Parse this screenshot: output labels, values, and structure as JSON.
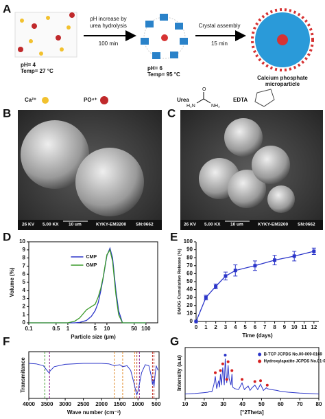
{
  "schematic": {
    "label": "A",
    "step1": "pH increase by",
    "step1b": "urea hydrolysis",
    "time1": "100 min",
    "step2": "Crystal assembly",
    "time2": "15 min",
    "ph1": "pH= 4",
    "temp1": "Temp= 27 °C",
    "ph2": "pH= 6",
    "temp2": "Temp= 95 °C",
    "product": "Calcium phosphate",
    "product2": "microparticle",
    "ca": "Ca²⁺",
    "po": "PO⁴⁺",
    "urea": "Urea",
    "edta": "EDTA",
    "o": "O",
    "h2n": "H₂N",
    "nh2": "NH₂"
  },
  "micrographs": [
    {
      "label": "B",
      "kv": "26 KV",
      "mag": "5.00 KX",
      "bar": "10 um",
      "model": "KYKY-EM3200",
      "sn": "SN:0662"
    },
    {
      "label": "C",
      "kv": "26 KV",
      "mag": "5.00 KX",
      "bar": "10 um",
      "model": "KYKY-EM3200",
      "sn": "SN:0662"
    }
  ],
  "chart_data": [
    {
      "type": "line",
      "label": "D",
      "xlabel": "Particle size (µm)",
      "ylabel": "Volume (%)",
      "xlog": true,
      "frame": true,
      "x": [
        0.1,
        0.5,
        1,
        1.5,
        2,
        3,
        4,
        5,
        6,
        7,
        8,
        10,
        12,
        14,
        17,
        20,
        25,
        30,
        50,
        100
      ],
      "xlim": [
        0.1,
        200
      ],
      "xticks": [
        0.1,
        0.5,
        1,
        5,
        10,
        50,
        100
      ],
      "ylim": [
        0,
        10
      ],
      "yticks": [
        0,
        1,
        2,
        3,
        4,
        5,
        6,
        7,
        8,
        9,
        10
      ],
      "series": [
        {
          "name": "CMP",
          "color": "#2b35c9",
          "values": [
            0,
            0,
            0,
            0,
            0.05,
            0.3,
            0.8,
            1.5,
            2.5,
            4,
            5.5,
            8.3,
            9.2,
            8,
            4,
            1.5,
            0,
            0,
            0,
            0
          ]
        },
        {
          "name": "GMP",
          "color": "#3a9a2a",
          "values": [
            0,
            0,
            0,
            0.2,
            0.6,
            1.6,
            2,
            2.3,
            3.2,
            4.3,
            5.6,
            8.4,
            9,
            7.6,
            3.5,
            1,
            0,
            0,
            0,
            0
          ]
        }
      ]
    },
    {
      "type": "errorline",
      "label": "E",
      "xlabel": "Time (days)",
      "ylabel": "DMOG Cumulative Release (%)",
      "frame": false,
      "x": [
        0,
        1,
        2,
        3,
        4,
        6,
        8,
        10,
        12
      ],
      "xlim": [
        0,
        12.5
      ],
      "xticks": [
        0,
        1,
        2,
        3,
        4,
        5,
        6,
        7,
        8,
        9,
        10,
        11,
        12
      ],
      "ylim": [
        0,
        100
      ],
      "yticks": [
        0,
        10,
        20,
        30,
        40,
        50,
        60,
        70,
        80,
        90,
        100
      ],
      "series": [
        {
          "color": "#2b35c9",
          "values": [
            0,
            30,
            44,
            57,
            64,
            70,
            77,
            82,
            88
          ],
          "errors": [
            0,
            3,
            3,
            5,
            7,
            6,
            6,
            6,
            4
          ]
        }
      ]
    },
    {
      "type": "spectrum",
      "label": "F",
      "xlabel": "Wave number (cm⁻¹)",
      "ylabel": "Transmitance",
      "frame": true,
      "color": "#2b35c9",
      "x": [
        4000,
        3800,
        3600,
        3500,
        3450,
        3400,
        3300,
        3000,
        2500,
        2000,
        1800,
        1650,
        1500,
        1420,
        1300,
        1200,
        1100,
        1050,
        1030,
        1000,
        950,
        900,
        800,
        700,
        640,
        600,
        580,
        560,
        530,
        500,
        450
      ],
      "values": [
        0.75,
        0.74,
        0.7,
        0.6,
        0.55,
        0.6,
        0.68,
        0.73,
        0.75,
        0.75,
        0.74,
        0.7,
        0.72,
        0.68,
        0.7,
        0.6,
        0.3,
        0.12,
        0.08,
        0.15,
        0.35,
        0.55,
        0.72,
        0.7,
        0.5,
        0.3,
        0.4,
        0.25,
        0.5,
        0.7,
        0.6
      ],
      "xlim": [
        4000,
        420
      ],
      "xticks": [
        4000,
        3500,
        3000,
        2500,
        2000,
        1500,
        1000,
        500
      ],
      "ylim": [
        0,
        1
      ],
      "markers": [
        3560,
        3430,
        1650,
        1420,
        1090,
        1030,
        960,
        600,
        560
      ],
      "marker_colors": [
        "#3a9a2a",
        "#8a1a8a",
        "#e08a2a",
        "#e08a2a",
        "#e08a2a",
        "#c0392b",
        "#8a1a8a",
        "#c0392b",
        "#c0392b"
      ]
    },
    {
      "type": "spectrum",
      "label": "G",
      "xlabel": "[°2Theta]",
      "ylabel": "Intensity (a.u)",
      "frame": true,
      "color": "#2b35c9",
      "x": [
        10,
        15,
        20,
        22,
        23,
        24,
        25,
        25.8,
        26.5,
        27.5,
        28,
        28.5,
        29,
        29.7,
        30.5,
        31,
        31.8,
        32.5,
        33,
        34,
        34.5,
        35,
        36,
        38,
        39.8,
        41,
        43,
        44,
        45,
        46.5,
        48,
        49.5,
        51,
        52.5,
        53,
        55,
        58,
        60,
        64,
        70,
        75,
        80
      ],
      "values": [
        10,
        11,
        13,
        14,
        16,
        15,
        30,
        50,
        22,
        40,
        25,
        55,
        30,
        70,
        30,
        90,
        35,
        75,
        45,
        30,
        55,
        25,
        22,
        20,
        35,
        20,
        28,
        18,
        24,
        30,
        20,
        32,
        18,
        24,
        22,
        20,
        18,
        16,
        14,
        12,
        11,
        10
      ],
      "xlim": [
        10,
        80
      ],
      "xticks": [
        10,
        20,
        30,
        40,
        50,
        60,
        70,
        80
      ],
      "ylim": [
        0,
        115
      ],
      "series": [
        {
          "name": "B-TCP JCPDS No.00-009-0169",
          "color": "#2b35c9",
          "x": [
            31
          ],
          "values": [
            98
          ]
        },
        {
          "name": "Hydroxylapatite JCPDS No.01-072-1243",
          "color": "#d62020",
          "x": [
            25.8,
            28.5,
            29.7,
            31.8,
            32.5,
            34.5,
            39.8,
            46.5,
            49.5,
            53
          ],
          "values": [
            58,
            63,
            78,
            43,
            83,
            63,
            43,
            38,
            40,
            30
          ]
        }
      ]
    }
  ]
}
